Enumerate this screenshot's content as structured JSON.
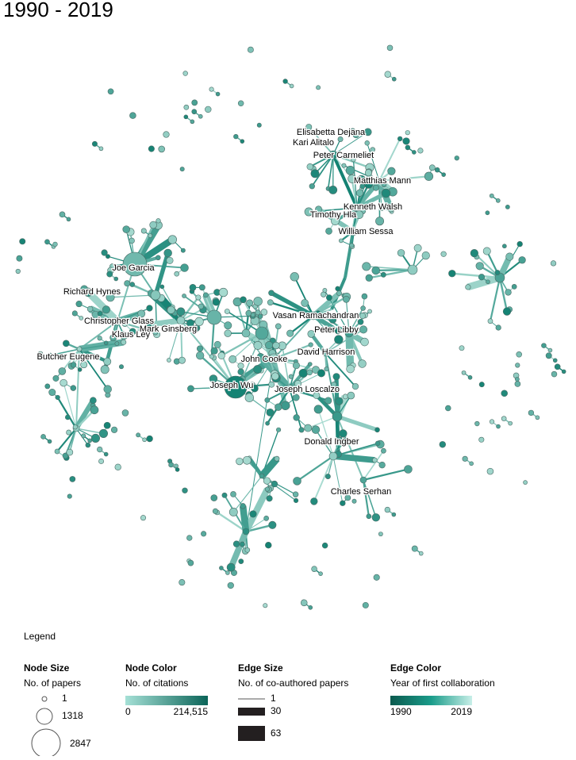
{
  "title": "1990 - 2019",
  "nodes": [
    {
      "label": "Elisabetta Dejana"
    },
    {
      "label": "Kari Alitalo"
    },
    {
      "label": "Peter Carmeliet"
    },
    {
      "label": "Matthias Mann"
    },
    {
      "label": "Kenneth Walsh"
    },
    {
      "label": "Timothy Hla"
    },
    {
      "label": "William Sessa"
    },
    {
      "label": "Joe Garcia"
    },
    {
      "label": "Richard Hynes"
    },
    {
      "label": "Christopher Glass"
    },
    {
      "label": "Mark Ginsberg"
    },
    {
      "label": "Klaus Ley"
    },
    {
      "label": "Vasan Ramachandran"
    },
    {
      "label": "Peter Libby"
    },
    {
      "label": "David Harrison"
    },
    {
      "label": "John Cooke"
    },
    {
      "label": "Butcher Eugene"
    },
    {
      "label": "Joseph Wu"
    },
    {
      "label": "Joseph Loscalzo"
    },
    {
      "label": "Donald Ingber"
    },
    {
      "label": "Charles Serhan"
    }
  ],
  "legend": {
    "heading": "Legend",
    "node_size": {
      "title": "Node Size",
      "subtitle": "No. of papers",
      "items": [
        "1",
        "1318",
        "2847"
      ]
    },
    "node_color": {
      "title": "Node Color",
      "subtitle": "No. of citations",
      "min": "0",
      "max": "214,515"
    },
    "edge_size": {
      "title": "Edge Size",
      "subtitle": "No. of co-authored papers",
      "items": [
        "1",
        "30",
        "63"
      ]
    },
    "edge_color": {
      "title": "Edge Color",
      "subtitle": "Year of first collaboration",
      "min": "1990",
      "max": "2019"
    }
  }
}
